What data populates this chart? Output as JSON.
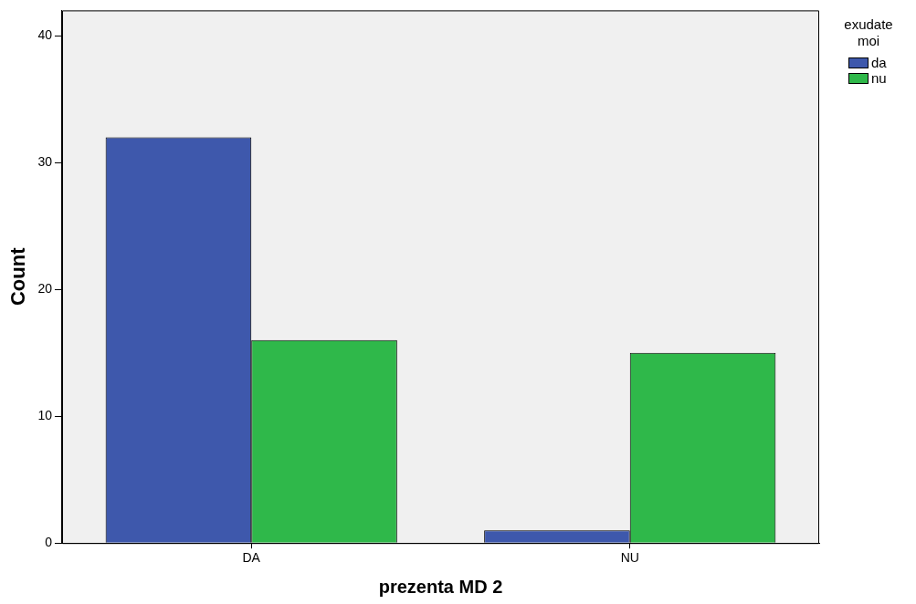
{
  "chart_data": {
    "type": "bar",
    "xlabel": "prezenta MD 2",
    "ylabel": "Count",
    "legend_title": "exudate moi",
    "categories": [
      "DA",
      "NU"
    ],
    "series": [
      {
        "name": "da",
        "color": "#3e58ac",
        "values": [
          32,
          1
        ]
      },
      {
        "name": "nu",
        "color": "#2fb84a",
        "values": [
          16,
          15
        ]
      }
    ],
    "ylim": [
      0,
      42
    ],
    "yticks": [
      0,
      10,
      20,
      30,
      40
    ],
    "legend": "top right"
  }
}
